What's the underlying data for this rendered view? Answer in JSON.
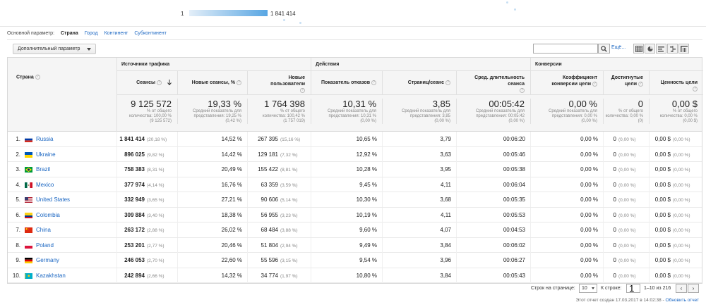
{
  "map_legend": {
    "min": "1",
    "max": "1 841 414"
  },
  "dimension_bar": {
    "label": "Основной параметр:",
    "items": [
      {
        "label": "Страна",
        "active": true
      },
      {
        "label": "Город",
        "active": false
      },
      {
        "label": "Континент",
        "active": false
      },
      {
        "label": "Субконтинент",
        "active": false
      }
    ]
  },
  "toolbar": {
    "secondary_dimension": "Дополнительный параметр",
    "search_placeholder": "",
    "more_link": "Ещё...",
    "view_icons": [
      "table-view-icon",
      "pie-view-icon",
      "performance-view-icon",
      "comparison-view-icon",
      "pivot-view-icon"
    ]
  },
  "table": {
    "dimension_header": "Страна",
    "groups": {
      "acquisition": "Источники трафика",
      "behavior": "Действия",
      "conversions": "Конверсии"
    },
    "columns": {
      "sessions": "Сеансы",
      "new_sessions": "Новые сеансы, %",
      "new_users": "Новые пользователи",
      "bounce_rate": "Показатель отказов",
      "pages_per_session": "Страниц/сеанс",
      "avg_duration": "Сред. длительность сеанса",
      "conversion_rate": "Коэффициент конверсии цели",
      "goal_completions": "Достигнутые цели",
      "goal_value": "Ценность цели"
    },
    "totals": {
      "sessions": {
        "value": "9 125 572",
        "note1": "% от общего",
        "note2": "количества: 100,00 %",
        "note3": "(9 125 572)"
      },
      "new_sessions": {
        "value": "19,33 %",
        "note1": "Средний показатель для",
        "note2": "представления: 19,25 %",
        "note3": "(0,42 %)"
      },
      "new_users": {
        "value": "1 764 398",
        "note1": "% от общего",
        "note2": "количества: 100,42 %",
        "note3": "(1 757 019)"
      },
      "bounce_rate": {
        "value": "10,31 %",
        "note1": "Средний показатель для",
        "note2": "представления: 10,31 %",
        "note3": "(0,00 %)"
      },
      "pages_per_session": {
        "value": "3,85",
        "note1": "Средний показатель для",
        "note2": "представления: 3,85",
        "note3": "(0,00 %)"
      },
      "avg_duration": {
        "value": "00:05:42",
        "note1": "Средний показатель для",
        "note2": "представления: 00:05:42",
        "note3": "(0,00 %)"
      },
      "conversion_rate": {
        "value": "0,00 %",
        "note1": "Средний показатель для",
        "note2": "представления: 0,00 %",
        "note3": "(0,00 %)"
      },
      "goal_completions": {
        "value": "0",
        "note1": "% от общего",
        "note2": "количества: 0,00 %",
        "note3": "(0)"
      },
      "goal_value": {
        "value": "0,00 $",
        "note1": "% от общего",
        "note2": "количества: 0,00 %",
        "note3": "(0,00 $)"
      }
    },
    "rows": [
      {
        "rank": "1.",
        "country": "Russia",
        "flag": "russia-flag-icon",
        "sessions": "1 841 414",
        "sessions_pct": "(20,18 %)",
        "new_sessions": "14,52 %",
        "new_users": "267 395",
        "new_users_pct": "(15,16 %)",
        "bounce_rate": "10,65 %",
        "pages": "3,79",
        "duration": "00:06:20",
        "conv": "0,00 %",
        "goals": "0",
        "goals_pct": "(0,00 %)",
        "value": "0,00 $",
        "value_pct": "(0,00 %)"
      },
      {
        "rank": "2.",
        "country": "Ukraine",
        "flag": "ukraine-flag-icon",
        "sessions": "896 025",
        "sessions_pct": "(9,82 %)",
        "new_sessions": "14,42 %",
        "new_users": "129 181",
        "new_users_pct": "(7,32 %)",
        "bounce_rate": "12,92 %",
        "pages": "3,63",
        "duration": "00:05:46",
        "conv": "0,00 %",
        "goals": "0",
        "goals_pct": "(0,00 %)",
        "value": "0,00 $",
        "value_pct": "(0,00 %)"
      },
      {
        "rank": "3.",
        "country": "Brazil",
        "flag": "brazil-flag-icon",
        "sessions": "758 383",
        "sessions_pct": "(8,31 %)",
        "new_sessions": "20,49 %",
        "new_users": "155 422",
        "new_users_pct": "(8,81 %)",
        "bounce_rate": "10,28 %",
        "pages": "3,95",
        "duration": "00:05:38",
        "conv": "0,00 %",
        "goals": "0",
        "goals_pct": "(0,00 %)",
        "value": "0,00 $",
        "value_pct": "(0,00 %)"
      },
      {
        "rank": "4.",
        "country": "Mexico",
        "flag": "mexico-flag-icon",
        "sessions": "377 974",
        "sessions_pct": "(4,14 %)",
        "new_sessions": "16,76 %",
        "new_users": "63 359",
        "new_users_pct": "(3,59 %)",
        "bounce_rate": "9,45 %",
        "pages": "4,11",
        "duration": "00:06:04",
        "conv": "0,00 %",
        "goals": "0",
        "goals_pct": "(0,00 %)",
        "value": "0,00 $",
        "value_pct": "(0,00 %)"
      },
      {
        "rank": "5.",
        "country": "United States",
        "flag": "usa-flag-icon",
        "sessions": "332 949",
        "sessions_pct": "(3,65 %)",
        "new_sessions": "27,21 %",
        "new_users": "90 606",
        "new_users_pct": "(5,14 %)",
        "bounce_rate": "10,30 %",
        "pages": "3,68",
        "duration": "00:05:35",
        "conv": "0,00 %",
        "goals": "0",
        "goals_pct": "(0,00 %)",
        "value": "0,00 $",
        "value_pct": "(0,00 %)"
      },
      {
        "rank": "6.",
        "country": "Colombia",
        "flag": "colombia-flag-icon",
        "sessions": "309 884",
        "sessions_pct": "(3,40 %)",
        "new_sessions": "18,38 %",
        "new_users": "56 955",
        "new_users_pct": "(3,23 %)",
        "bounce_rate": "10,19 %",
        "pages": "4,11",
        "duration": "00:05:53",
        "conv": "0,00 %",
        "goals": "0",
        "goals_pct": "(0,00 %)",
        "value": "0,00 $",
        "value_pct": "(0,00 %)"
      },
      {
        "rank": "7.",
        "country": "China",
        "flag": "china-flag-icon",
        "sessions": "263 172",
        "sessions_pct": "(2,88 %)",
        "new_sessions": "26,02 %",
        "new_users": "68 484",
        "new_users_pct": "(3,88 %)",
        "bounce_rate": "9,60 %",
        "pages": "4,07",
        "duration": "00:04:53",
        "conv": "0,00 %",
        "goals": "0",
        "goals_pct": "(0,00 %)",
        "value": "0,00 $",
        "value_pct": "(0,00 %)"
      },
      {
        "rank": "8.",
        "country": "Poland",
        "flag": "poland-flag-icon",
        "sessions": "253 201",
        "sessions_pct": "(2,77 %)",
        "new_sessions": "20,46 %",
        "new_users": "51 804",
        "new_users_pct": "(2,94 %)",
        "bounce_rate": "9,49 %",
        "pages": "3,84",
        "duration": "00:06:02",
        "conv": "0,00 %",
        "goals": "0",
        "goals_pct": "(0,00 %)",
        "value": "0,00 $",
        "value_pct": "(0,00 %)"
      },
      {
        "rank": "9.",
        "country": "Germany",
        "flag": "germany-flag-icon",
        "sessions": "246 053",
        "sessions_pct": "(2,70 %)",
        "new_sessions": "22,60 %",
        "new_users": "55 596",
        "new_users_pct": "(3,15 %)",
        "bounce_rate": "9,54 %",
        "pages": "3,96",
        "duration": "00:06:27",
        "conv": "0,00 %",
        "goals": "0",
        "goals_pct": "(0,00 %)",
        "value": "0,00 $",
        "value_pct": "(0,00 %)"
      },
      {
        "rank": "10.",
        "country": "Kazakhstan",
        "flag": "kazakhstan-flag-icon",
        "sessions": "242 894",
        "sessions_pct": "(2,66 %)",
        "new_sessions": "14,32 %",
        "new_users": "34 774",
        "new_users_pct": "(1,97 %)",
        "bounce_rate": "10,80 %",
        "pages": "3,84",
        "duration": "00:05:43",
        "conv": "0,00 %",
        "goals": "0",
        "goals_pct": "(0,00 %)",
        "value": "0,00 $",
        "value_pct": "(0,00 %)"
      }
    ]
  },
  "pagination": {
    "rows_label": "Строк на странице:",
    "rows_value": "10",
    "goto_label": "К строке:",
    "goto_value": "1",
    "range": "1–10 из 216",
    "prev": "‹",
    "next": "›"
  },
  "footer": {
    "text": "Этот отчет создан 17.03.2017 в 14:02:38 -",
    "refresh": "Обновить отчет"
  }
}
